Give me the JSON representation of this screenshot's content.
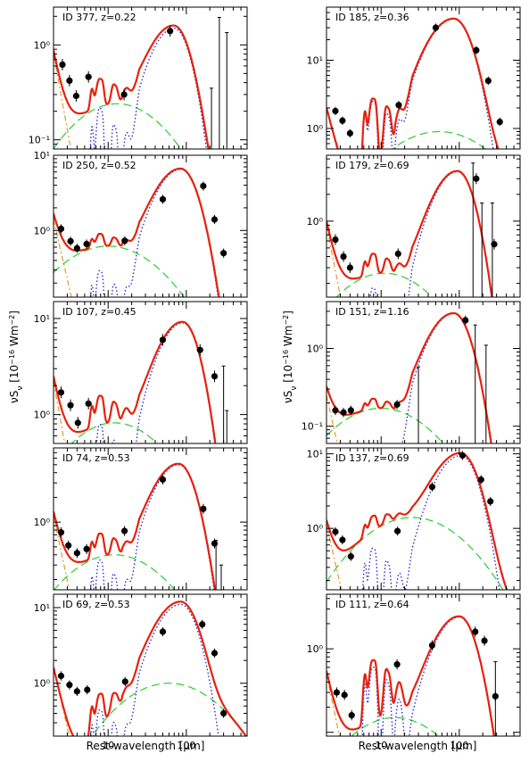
{
  "figure": {
    "xlabel": "Rest-wavelength [μm]",
    "ylabel": "νS_ν [10^-16 Wm^-2]",
    "x_tick_labels": [
      "10",
      "100"
    ]
  },
  "colors": {
    "total_model": "#e8200c",
    "stellar": "#e39a2a",
    "agn_torus": "#25d12a",
    "starburst": "#1f1fcc",
    "observations": "#000000"
  },
  "chart_data": [
    {
      "type": "line",
      "id_label": "ID 377, z=0.22",
      "xlim": [
        2,
        600
      ],
      "ylim": [
        0.08,
        2.5
      ],
      "ylog": true,
      "yticks": [
        {
          "value": 0.1,
          "label": "10⁻¹"
        },
        {
          "value": 1,
          "label": "10⁰"
        }
      ],
      "points": [
        [
          2.6,
          0.62
        ],
        [
          3.2,
          0.42
        ],
        [
          3.9,
          0.29
        ],
        [
          5.6,
          0.46
        ],
        [
          16,
          0.3
        ],
        [
          62,
          1.4
        ]
      ],
      "uplims": [
        [
          210,
          0.35
        ],
        [
          265,
          1.95
        ],
        [
          330,
          1.35
        ]
      ],
      "model": {
        "fir_peak": 70,
        "fir_amp": 1.5,
        "pah": 0.22,
        "torus_peak": 13,
        "torus_amp": 0.24,
        "stellar_amp": 0.8,
        "silicate": 0.75
      }
    },
    {
      "type": "line",
      "id_label": "ID 185, z=0.36",
      "xlim": [
        2,
        600
      ],
      "ylim": [
        0.5,
        60
      ],
      "ylog": true,
      "yticks": [
        {
          "value": 1,
          "label": "10⁰"
        },
        {
          "value": 10,
          "label": "10¹"
        }
      ],
      "points": [
        [
          2.6,
          1.8
        ],
        [
          3.2,
          1.3
        ],
        [
          4.0,
          0.85
        ],
        [
          16.8,
          2.2
        ],
        [
          50,
          30
        ],
        [
          165,
          14
        ],
        [
          235,
          5
        ],
        [
          330,
          1.25
        ]
      ],
      "uplims": [],
      "model": {
        "fir_peak": 85,
        "fir_amp": 40,
        "pah": 2.5,
        "torus_peak": 55,
        "torus_amp": 0.9,
        "stellar_amp": 2.0,
        "silicate": 0.7
      }
    },
    {
      "type": "line",
      "id_label": "ID 250, z=0.52",
      "xlim": [
        2,
        600
      ],
      "ylim": [
        0.13,
        10
      ],
      "ylog": true,
      "yticks": [
        {
          "value": 1,
          "label": "10⁰"
        },
        {
          "value": 10,
          "label": "10¹"
        }
      ],
      "points": [
        [
          2.5,
          1.05
        ],
        [
          3.3,
          0.72
        ],
        [
          4.0,
          0.58
        ],
        [
          5.3,
          0.66
        ],
        [
          16.3,
          0.73
        ],
        [
          50,
          2.6
        ],
        [
          165,
          3.9
        ],
        [
          230,
          1.4
        ],
        [
          300,
          0.5
        ]
      ],
      "uplims": [],
      "model": {
        "fir_peak": 85,
        "fir_amp": 6.5,
        "pah": 0.3,
        "torus_peak": 10,
        "torus_amp": 0.62,
        "stellar_amp": 1.4,
        "silicate": 0.8
      }
    },
    {
      "type": "line",
      "id_label": "ID 179, z=0.69",
      "xlim": [
        2,
        600
      ],
      "ylim": [
        0.14,
        5.5
      ],
      "ylog": true,
      "yticks": [
        {
          "value": 1,
          "label": "10⁰"
        }
      ],
      "points": [
        [
          2.6,
          0.62
        ],
        [
          3.3,
          0.4
        ],
        [
          4.0,
          0.3
        ],
        [
          16.5,
          0.43
        ],
        [
          165,
          3.0
        ],
        [
          280,
          0.55
        ]
      ],
      "uplims": [
        [
          150,
          4.5
        ],
        [
          195,
          1.6
        ],
        [
          265,
          1.6
        ]
      ],
      "model": {
        "fir_peak": 95,
        "fir_amp": 3.6,
        "pah": 0.18,
        "torus_peak": 11,
        "torus_amp": 0.26,
        "stellar_amp": 0.9,
        "silicate": 0.7
      }
    },
    {
      "type": "line",
      "id_label": "ID 107, z=0.45",
      "xlim": [
        2,
        600
      ],
      "ylim": [
        0.5,
        15
      ],
      "ylog": true,
      "yticks": [
        {
          "value": 1,
          "label": "10⁰"
        },
        {
          "value": 10,
          "label": "10¹"
        }
      ],
      "points": [
        [
          2.5,
          1.7
        ],
        [
          3.3,
          1.25
        ],
        [
          4.1,
          0.82
        ],
        [
          5.6,
          1.3
        ],
        [
          50,
          6
        ],
        [
          150,
          4.7
        ],
        [
          230,
          2.5
        ]
      ],
      "uplims": [
        [
          300,
          3.2
        ],
        [
          330,
          1.1
        ]
      ],
      "model": {
        "fir_peak": 90,
        "fir_amp": 9,
        "pah": 0.8,
        "torus_peak": 12,
        "torus_amp": 0.82,
        "stellar_amp": 2.2,
        "silicate": 0.7
      }
    },
    {
      "type": "line",
      "id_label": "ID 151, z=1.16",
      "xlim": [
        2,
        600
      ],
      "ylim": [
        0.06,
        4
      ],
      "ylog": true,
      "yticks": [
        {
          "value": 0.1,
          "label": "10⁻¹"
        },
        {
          "value": 1,
          "label": "10⁰"
        }
      ],
      "points": [
        [
          2.6,
          0.16
        ],
        [
          3.3,
          0.15
        ],
        [
          4.1,
          0.16
        ],
        [
          16,
          0.19
        ],
        [
          120,
          2.3
        ]
      ],
      "uplims": [
        [
          30,
          0.58
        ],
        [
          160,
          2.0
        ],
        [
          220,
          1.1
        ]
      ],
      "model": {
        "fir_peak": 85,
        "fir_amp": 2.8,
        "pah": 0.06,
        "torus_peak": 10,
        "torus_amp": 0.17,
        "stellar_amp": 0.25,
        "silicate": 0.8
      }
    },
    {
      "type": "line",
      "id_label": "ID 74, z=0.53",
      "xlim": [
        2,
        600
      ],
      "ylim": [
        0.15,
        8
      ],
      "ylog": true,
      "yticks": [
        {
          "value": 1,
          "label": "10⁰"
        }
      ],
      "points": [
        [
          2.5,
          0.75
        ],
        [
          3.1,
          0.52
        ],
        [
          4.0,
          0.42
        ],
        [
          5.3,
          0.47
        ],
        [
          16.2,
          0.78
        ],
        [
          50,
          3.3
        ],
        [
          165,
          1.45
        ],
        [
          230,
          0.55
        ]
      ],
      "uplims": [
        [
          240,
          0.6
        ],
        [
          280,
          0.3
        ]
      ],
      "model": {
        "fir_peak": 80,
        "fir_amp": 5.0,
        "pah": 0.35,
        "torus_peak": 12,
        "torus_amp": 0.4,
        "stellar_amp": 1.2,
        "silicate": 0.7
      }
    },
    {
      "type": "line",
      "id_label": "ID 137, z=0.69",
      "xlim": [
        2,
        600
      ],
      "ylim": [
        0.15,
        12
      ],
      "ylog": true,
      "yticks": [
        {
          "value": 1,
          "label": "10⁰"
        },
        {
          "value": 10,
          "label": "10¹"
        }
      ],
      "points": [
        [
          2.6,
          0.9
        ],
        [
          3.2,
          0.7
        ],
        [
          4.1,
          0.42
        ],
        [
          16.2,
          0.92
        ],
        [
          45,
          3.6
        ],
        [
          110,
          9.5
        ],
        [
          190,
          4.5
        ],
        [
          250,
          2.3
        ]
      ],
      "uplims": [],
      "model": {
        "fir_peak": 105,
        "fir_amp": 9.5,
        "pah": 0.55,
        "torus_peak": 25,
        "torus_amp": 1.4,
        "stellar_amp": 1.1,
        "silicate": 0.7
      }
    },
    {
      "type": "line",
      "id_label": "ID 69, z=0.53",
      "xlim": [
        2,
        600
      ],
      "ylim": [
        0.2,
        15
      ],
      "ylog": true,
      "yticks": [
        {
          "value": 1,
          "label": "10⁰"
        },
        {
          "value": 10,
          "label": "10¹"
        }
      ],
      "points": [
        [
          2.5,
          1.25
        ],
        [
          3.2,
          0.95
        ],
        [
          4.0,
          0.78
        ],
        [
          5.4,
          0.82
        ],
        [
          16.5,
          1.05
        ],
        [
          50,
          4.8
        ],
        [
          160,
          6
        ],
        [
          230,
          2.5
        ],
        [
          300,
          0.4
        ]
      ],
      "uplims": [],
      "model": {
        "fir_peak": 85,
        "fir_amp": 11,
        "pah": 0.45,
        "torus_peak": 60,
        "torus_amp": 1.0,
        "stellar_amp": 1.6,
        "silicate": 0.7
      }
    },
    {
      "type": "line",
      "id_label": "ID 111, z=0.64",
      "xlim": [
        2,
        600
      ],
      "ylim": [
        0.09,
        4.5
      ],
      "ylog": true,
      "yticks": [
        {
          "value": 1,
          "label": "10⁰"
        }
      ],
      "points": [
        [
          2.7,
          0.3
        ],
        [
          3.4,
          0.28
        ],
        [
          4.2,
          0.16
        ],
        [
          16,
          0.65
        ],
        [
          45,
          1.1
        ],
        [
          160,
          1.6
        ],
        [
          210,
          1.25
        ],
        [
          290,
          0.27
        ]
      ],
      "uplims": [
        [
          290,
          0.7
        ]
      ],
      "model": {
        "fir_peak": 100,
        "fir_amp": 2.4,
        "pah": 0.6,
        "torus_peak": 15,
        "torus_amp": 0.15,
        "stellar_amp": 0.5,
        "silicate": 0.6
      }
    }
  ]
}
